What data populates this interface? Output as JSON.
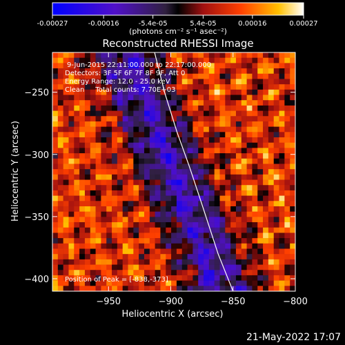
{
  "chart_data": {
    "type": "heatmap",
    "title": "Reconstructed RHESSI Image",
    "xlabel": "Heliocentric X (arcsec)",
    "ylabel": "Heliocentric Y (arcsec)",
    "xlim": [
      -995,
      -800
    ],
    "ylim": [
      -410,
      -218
    ],
    "x_ticks": [
      -950,
      -900,
      -850,
      -800
    ],
    "y_ticks": [
      -250,
      -300,
      -350,
      -400
    ],
    "colorbar": {
      "min": -0.00027,
      "max": 0.00027,
      "tick_values": [
        -0.00027,
        -0.00016,
        -5.4e-05,
        5.4e-05,
        0.00016,
        0.00027
      ],
      "tick_labels": [
        "-0.00027",
        "-0.00016",
        "-5.4e-05",
        "5.4e-05",
        "0.00016",
        "0.00027"
      ],
      "units_label": "(photons cm⁻² s⁻¹ asec⁻²)"
    },
    "annotations": [
      "9-Jun-2015 22:11:00.000 to 22:17:00.000",
      "Detectors: 3F 5F 6F 7F 8F 9F, Att 0",
      "Energy Range: 12.0 - 25.0 keV",
      "Clean     Total counts: 7.70E+03"
    ],
    "peak_label": "Position of Peak = [-838,-373]",
    "limb_curve": {
      "x": [
        -913,
        -905,
        -895,
        -885,
        -875,
        -862,
        -850
      ],
      "y": [
        -218,
        -250,
        -282,
        -310,
        -340,
        -380,
        -410
      ]
    },
    "colors": {
      "background": "#000000",
      "foreground": "#ffffff"
    }
  },
  "timestamp": "21-May-2022 17:07"
}
